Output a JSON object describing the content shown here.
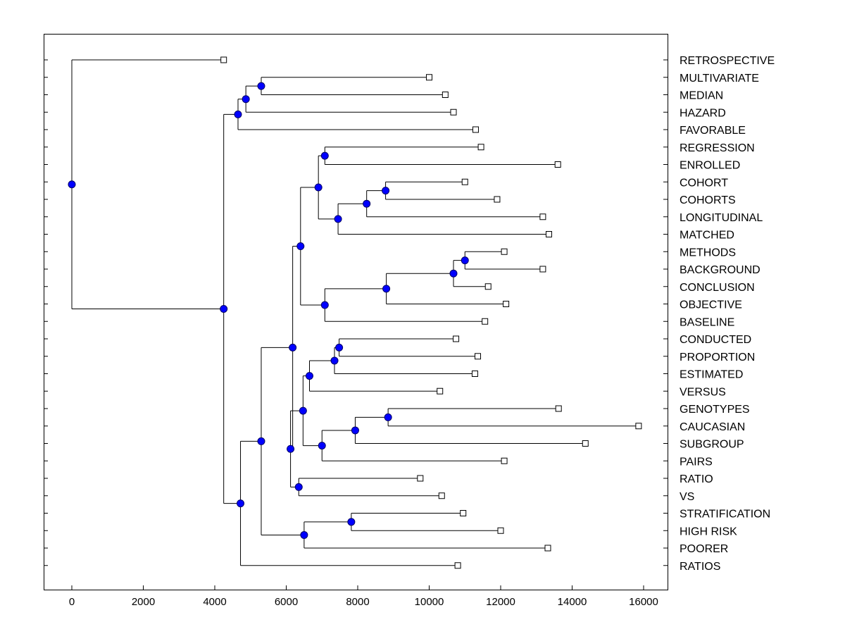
{
  "chart_data": {
    "type": "dendrogram",
    "title": "",
    "xlabel": "",
    "ylabel": "",
    "xlim": [
      -800,
      16700
    ],
    "xticks": [
      0,
      2000,
      4000,
      6000,
      8000,
      10000,
      12000,
      14000,
      16000
    ],
    "xtick_labels": [
      "0",
      "2000",
      "4000",
      "6000",
      "8000",
      "10000",
      "12000",
      "14000",
      "16000"
    ],
    "colors": {
      "node": "#0000ff",
      "leaf": "#ffffff",
      "line": "#000000"
    },
    "leaves": [
      {
        "label": "RETROSPECTIVE",
        "x": 4250
      },
      {
        "label": "MULTIVARIATE",
        "x": 10000
      },
      {
        "label": "MEDIAN",
        "x": 10450
      },
      {
        "label": "HAZARD",
        "x": 10680
      },
      {
        "label": "FAVORABLE",
        "x": 11300
      },
      {
        "label": "REGRESSION",
        "x": 11450
      },
      {
        "label": "ENROLLED",
        "x": 13600
      },
      {
        "label": "COHORT",
        "x": 11000
      },
      {
        "label": "COHORTS",
        "x": 11900
      },
      {
        "label": "LONGITUDINAL",
        "x": 13180
      },
      {
        "label": "MATCHED",
        "x": 13350
      },
      {
        "label": "METHODS",
        "x": 12100
      },
      {
        "label": "BACKGROUND",
        "x": 13180
      },
      {
        "label": "CONCLUSION",
        "x": 11650
      },
      {
        "label": "OBJECTIVE",
        "x": 12150
      },
      {
        "label": "BASELINE",
        "x": 11560
      },
      {
        "label": "CONDUCTED",
        "x": 10750
      },
      {
        "label": "PROPORTION",
        "x": 11360
      },
      {
        "label": "ESTIMATED",
        "x": 11280
      },
      {
        "label": "VERSUS",
        "x": 10300
      },
      {
        "label": "GENOTYPES",
        "x": 13620
      },
      {
        "label": "CAUCASIAN",
        "x": 15860
      },
      {
        "label": "SUBGROUP",
        "x": 14370
      },
      {
        "label": "PAIRS",
        "x": 12100
      },
      {
        "label": "RATIO",
        "x": 9750
      },
      {
        "label": "VS",
        "x": 10350
      },
      {
        "label": "STRATIFICATION",
        "x": 10950
      },
      {
        "label": "HIGH RISK",
        "x": 12000
      },
      {
        "label": "POORER",
        "x": 13320
      },
      {
        "label": "RATIOS",
        "x": 10800
      }
    ],
    "merges": [
      {
        "id": "n1",
        "x": 5300,
        "children": [
          "L1",
          "L2"
        ]
      },
      {
        "id": "n2",
        "x": 4870,
        "children": [
          "n1",
          "L3"
        ]
      },
      {
        "id": "n3",
        "x": 4650,
        "children": [
          "n2",
          "L4"
        ]
      },
      {
        "id": "n4",
        "x": 7080,
        "children": [
          "L5",
          "L6"
        ]
      },
      {
        "id": "n5",
        "x": 8780,
        "children": [
          "L7",
          "L8"
        ]
      },
      {
        "id": "n6",
        "x": 8250,
        "children": [
          "n5",
          "L9"
        ]
      },
      {
        "id": "n7",
        "x": 7450,
        "children": [
          "n6",
          "L10"
        ]
      },
      {
        "id": "n8",
        "x": 6900,
        "children": [
          "n4",
          "n7"
        ]
      },
      {
        "id": "n9",
        "x": 11000,
        "children": [
          "L11",
          "L12"
        ]
      },
      {
        "id": "n10",
        "x": 10680,
        "children": [
          "n9",
          "L13"
        ]
      },
      {
        "id": "n11",
        "x": 8800,
        "children": [
          "n10",
          "L14"
        ]
      },
      {
        "id": "n12",
        "x": 7080,
        "children": [
          "n11",
          "L15"
        ]
      },
      {
        "id": "n13",
        "x": 6400,
        "children": [
          "n8",
          "n12"
        ]
      },
      {
        "id": "n14",
        "x": 7480,
        "children": [
          "L16",
          "L17"
        ]
      },
      {
        "id": "n15",
        "x": 7350,
        "children": [
          "n14",
          "L18"
        ]
      },
      {
        "id": "n16",
        "x": 6650,
        "children": [
          "n15",
          "L19"
        ]
      },
      {
        "id": "n17",
        "x": 8850,
        "children": [
          "L20",
          "L21"
        ]
      },
      {
        "id": "n18",
        "x": 7930,
        "children": [
          "n17",
          "L22"
        ]
      },
      {
        "id": "n19",
        "x": 7000,
        "children": [
          "n18",
          "L23"
        ]
      },
      {
        "id": "n20",
        "x": 6470,
        "children": [
          "n16",
          "n19"
        ]
      },
      {
        "id": "n21",
        "x": 6350,
        "children": [
          "L24",
          "L25"
        ]
      },
      {
        "id": "n22",
        "x": 6120,
        "children": [
          "n20",
          "n21"
        ]
      },
      {
        "id": "n23",
        "x": 6180,
        "children": [
          "n13",
          "n22"
        ]
      },
      {
        "id": "n24",
        "x": 7820,
        "children": [
          "L26",
          "L27"
        ]
      },
      {
        "id": "n25",
        "x": 6500,
        "children": [
          "n24",
          "L28"
        ]
      },
      {
        "id": "n26",
        "x": 5300,
        "children": [
          "n23",
          "n25"
        ]
      },
      {
        "id": "n27",
        "x": 4720,
        "children": [
          "n26",
          "L29"
        ]
      },
      {
        "id": "n28",
        "x": 4250,
        "children": [
          "n3",
          "n27"
        ]
      },
      {
        "id": "n29",
        "x": 0,
        "children": [
          "L0",
          "n28"
        ]
      }
    ]
  }
}
